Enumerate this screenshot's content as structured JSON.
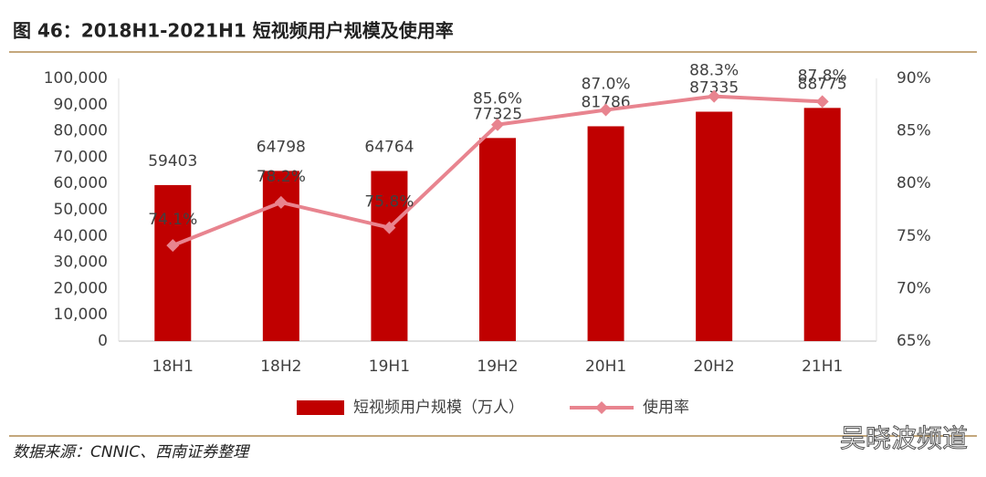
{
  "chart_data": {
    "type": "bar",
    "title": "图 46：2018H1-2021H1 短视频用户规模及使用率",
    "source": "数据来源：CNNIC、西南证券整理",
    "categories": [
      "18H1",
      "18H2",
      "19H1",
      "19H2",
      "20H1",
      "20H2",
      "21H1"
    ],
    "series": [
      {
        "name": "短视频用户规模（万人）",
        "type": "bar",
        "color": "#c00000",
        "values": [
          59403,
          64798,
          64764,
          77325,
          81786,
          87335,
          88775
        ]
      },
      {
        "name": "使用率",
        "type": "line",
        "axis": "y2",
        "color": "#e8848f",
        "values": [
          74.1,
          78.2,
          75.8,
          85.6,
          87.0,
          88.3,
          87.8
        ],
        "value_labels": [
          "74.1%",
          "78.2%",
          "75.8%",
          "85.6%",
          "87.0%",
          "88.3%",
          "87.8%"
        ]
      }
    ],
    "ylim": [
      0,
      100000
    ],
    "yticks": [
      0,
      {
        "value": 10000,
        "label": "10,000"
      },
      {
        "value": 20000,
        "label": "20,000"
      },
      {
        "value": 30000,
        "label": "30,000"
      },
      {
        "value": 40000,
        "label": "40,000"
      },
      {
        "value": 50000,
        "label": "50,000"
      },
      {
        "value": 60000,
        "label": "60,000"
      },
      {
        "value": 70000,
        "label": "70,000"
      },
      {
        "value": 80000,
        "label": "80,000"
      },
      {
        "value": 90000,
        "label": "90,000"
      },
      {
        "value": 100000,
        "label": "100,000"
      }
    ],
    "y2lim": [
      65,
      90
    ],
    "y2ticks": [
      {
        "value": 65,
        "label": "65%"
      },
      {
        "value": 70,
        "label": "70%"
      },
      {
        "value": 75,
        "label": "75%"
      },
      {
        "value": 80,
        "label": "80%"
      },
      {
        "value": 85,
        "label": "85%"
      },
      {
        "value": 90,
        "label": "90%"
      }
    ],
    "legend": "bottom"
  },
  "watermark": "吴晓波频道"
}
